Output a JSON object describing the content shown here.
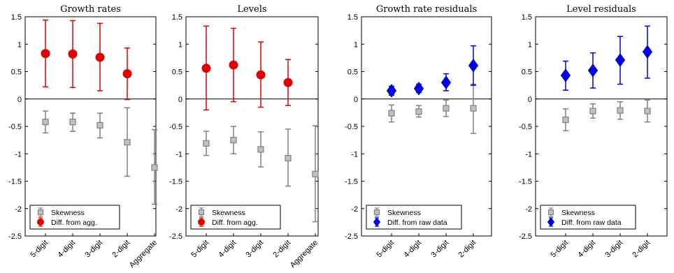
{
  "colors": {
    "skewness": "#808080",
    "skewness_fill": "#c0c0c0",
    "agg": "#e00000",
    "raw": "#0000e0"
  },
  "chart_data": [
    {
      "type": "scatter",
      "title": "Growth rates",
      "ylim": [
        -2.5,
        1.5
      ],
      "yticks": [
        "1.5",
        "1",
        "0.5",
        "0",
        "-0.5",
        "-1",
        "-1.5",
        "-2",
        "-2.5"
      ],
      "categories": [
        "5-digit",
        "4-digit",
        "3-digit",
        "2-digit",
        "Aggregate"
      ],
      "series": [
        {
          "name": "Skewness",
          "marker": "square",
          "values": [
            -0.42,
            -0.42,
            -0.48,
            -0.79,
            -1.25
          ],
          "lower": [
            -0.62,
            -0.59,
            -0.71,
            -1.41,
            -1.92
          ],
          "upper": [
            -0.22,
            -0.26,
            -0.26,
            -0.16,
            -0.56
          ]
        },
        {
          "name": "Diff. from agg.",
          "marker": "circle",
          "values": [
            0.83,
            0.82,
            0.76,
            0.46
          ],
          "lower": [
            0.22,
            0.21,
            0.15,
            -0.01
          ],
          "upper": [
            1.44,
            1.43,
            1.38,
            0.93
          ]
        }
      ],
      "legend": "bottom-left"
    },
    {
      "type": "scatter",
      "title": "Levels",
      "ylim": [
        -2.5,
        1.5
      ],
      "yticks": [
        "1.5",
        "1",
        "0.5",
        "0",
        "-0.5",
        "-1",
        "-1.5",
        "-2",
        "-2.5"
      ],
      "categories": [
        "5-digit",
        "4-digit",
        "3-digit",
        "2-digit",
        "Aggregate"
      ],
      "series": [
        {
          "name": "Skewness",
          "marker": "square",
          "values": [
            -0.81,
            -0.75,
            -0.92,
            -1.08,
            -1.37
          ],
          "lower": [
            -1.03,
            -1.0,
            -1.24,
            -1.59,
            -2.24
          ],
          "upper": [
            -0.59,
            -0.5,
            -0.6,
            -0.55,
            -0.49
          ]
        },
        {
          "name": "Diff. from agg.",
          "marker": "circle",
          "values": [
            0.56,
            0.62,
            0.44,
            0.3
          ],
          "lower": [
            -0.2,
            -0.05,
            -0.15,
            -0.12
          ],
          "upper": [
            1.33,
            1.29,
            1.04,
            0.72
          ]
        }
      ],
      "legend": "bottom-left"
    },
    {
      "type": "scatter",
      "title": "Growth rate residuals",
      "ylim": [
        -2.5,
        1.5
      ],
      "yticks": [
        "1.5",
        "1",
        "0.5",
        "0",
        "-0.5",
        "-1",
        "-1.5",
        "-2",
        "-2.5"
      ],
      "categories": [
        "5-digit",
        "4-digit",
        "3-digit",
        "2-digit"
      ],
      "series": [
        {
          "name": "Skewness",
          "marker": "square",
          "values": [
            -0.26,
            -0.23,
            -0.17,
            -0.17
          ],
          "lower": [
            -0.42,
            -0.33,
            -0.32,
            -0.63
          ],
          "upper": [
            -0.11,
            -0.12,
            -0.02,
            0.27
          ]
        },
        {
          "name": "Diff. from raw data",
          "marker": "diamond",
          "values": [
            0.15,
            0.19,
            0.3,
            0.61
          ],
          "lower": [
            0.07,
            0.12,
            0.15,
            0.25
          ],
          "upper": [
            0.23,
            0.27,
            0.46,
            0.97
          ]
        }
      ],
      "legend": "bottom-left"
    },
    {
      "type": "scatter",
      "title": "Level residuals",
      "ylim": [
        -2.5,
        1.5
      ],
      "yticks": [
        "1.5",
        "1",
        "0.5",
        "0",
        "-0.5",
        "-1",
        "-1.5",
        "-2",
        "-2.5"
      ],
      "categories": [
        "5-digit",
        "4-digit",
        "3-digit",
        "2-digit"
      ],
      "series": [
        {
          "name": "Skewness",
          "marker": "square",
          "values": [
            -0.38,
            -0.22,
            -0.21,
            -0.22
          ],
          "lower": [
            -0.58,
            -0.35,
            -0.37,
            -0.42
          ],
          "upper": [
            -0.18,
            -0.09,
            -0.05,
            -0.02
          ]
        },
        {
          "name": "Diff. from raw data",
          "marker": "diamond",
          "values": [
            0.43,
            0.52,
            0.71,
            0.86
          ],
          "lower": [
            0.16,
            0.2,
            0.27,
            0.38
          ],
          "upper": [
            0.69,
            0.84,
            1.14,
            1.33
          ]
        }
      ],
      "legend": "bottom-left"
    }
  ]
}
